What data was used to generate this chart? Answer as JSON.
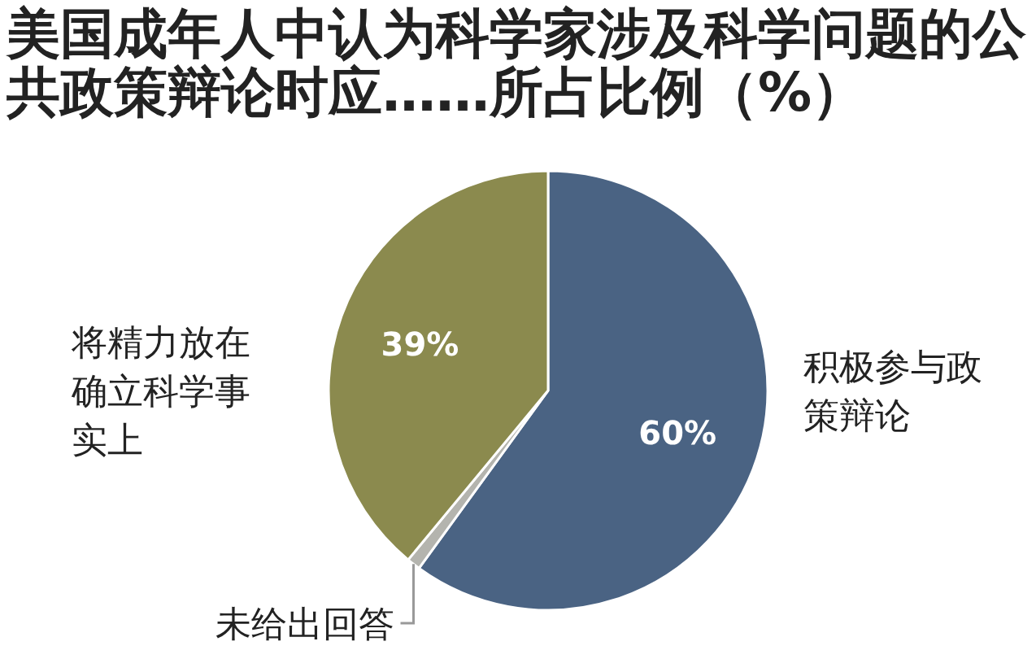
{
  "chart_data": {
    "type": "pie",
    "title": "美国成年人中认为科学家涉及科学问题的公共政策辩论时应……所占比例（%）",
    "categories": [
      "积极参与政策辩论",
      "未给出回答",
      "将精力放在确立科学事实上"
    ],
    "values": [
      60,
      1,
      39
    ],
    "colors": [
      "#4a6383",
      "#b4b4ae",
      "#8b8a4e"
    ],
    "value_labels": [
      "60%",
      null,
      "39%"
    ]
  }
}
